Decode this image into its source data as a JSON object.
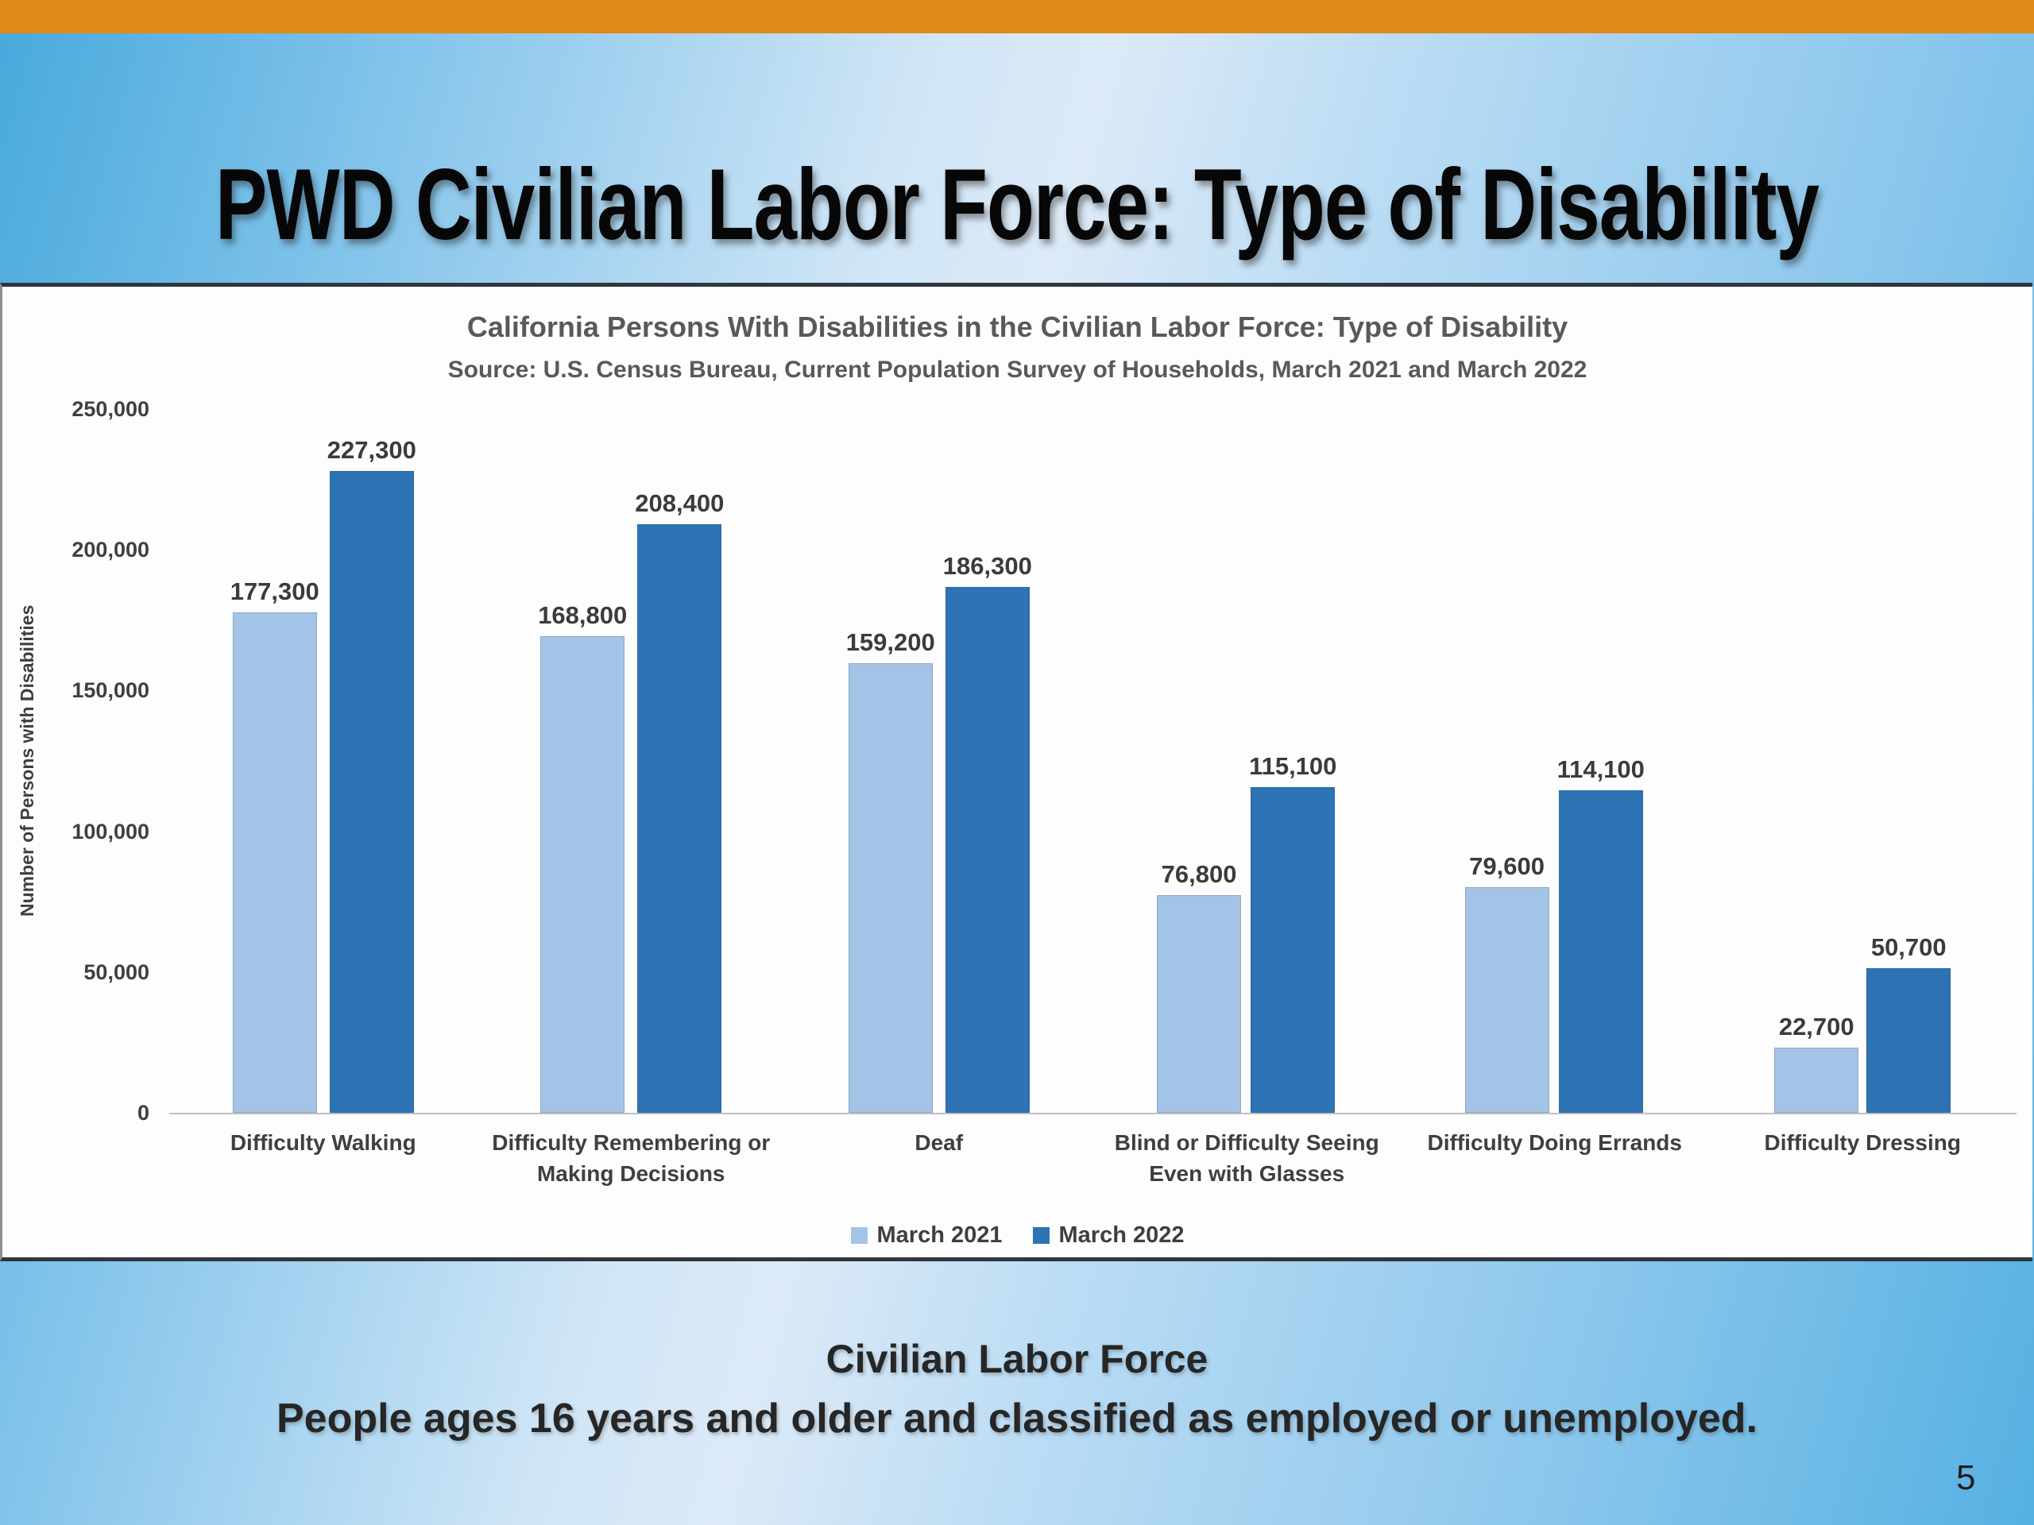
{
  "slide": {
    "title": "PWD Civilian Labor Force: Type of Disability",
    "page_number": "5",
    "footer": {
      "heading": "Civilian Labor Force",
      "subheading": "People ages 16 years and older and classified as employed or unemployed."
    }
  },
  "colors": {
    "top_bar_orange": "#E18A18",
    "background_blue": "#7FC2EA",
    "panel_border": "#30363E",
    "march_2021_light_blue": "#A3C4E6",
    "march_2022_dark_blue": "#2E73B4"
  },
  "chart_data": {
    "type": "bar",
    "title": "California Persons With Disabilities in the Civilian Labor Force: Type of Disability",
    "subtitle": "Source: U.S. Census Bureau, Current Population Survey of Households, March 2021 and March 2022",
    "ylabel": "Number of Persons with Disabilities",
    "xlabel": "",
    "ylim": [
      0,
      250000
    ],
    "grid": false,
    "legend_position": "bottom",
    "yticks": [
      {
        "label": "250,000",
        "value": 250000
      },
      {
        "label": "200,000",
        "value": 200000
      },
      {
        "label": "150,000",
        "value": 150000
      },
      {
        "label": "100,000",
        "value": 100000
      },
      {
        "label": "50,000",
        "value": 50000
      },
      {
        "label": "0",
        "value": 0
      }
    ],
    "categories": [
      "Difficulty Walking",
      "Difficulty Remembering or\nMaking Decisions",
      "Deaf",
      "Blind or Difficulty Seeing\nEven with Glasses",
      "Difficulty Doing Errands",
      "Difficulty Dressing"
    ],
    "series": [
      {
        "name": "March 2021",
        "color": "#A3C4E6",
        "values": [
          177300,
          168800,
          159200,
          76800,
          79600,
          22700
        ],
        "labels": [
          "177,300",
          "168,800",
          "159,200",
          "76,800",
          "79,600",
          "22,700"
        ]
      },
      {
        "name": "March 2022",
        "color": "#2E73B4",
        "values": [
          227300,
          208400,
          186300,
          115100,
          114100,
          50700
        ],
        "labels": [
          "227,300",
          "208,400",
          "186,300",
          "115,100",
          "114,100",
          "50,700"
        ]
      }
    ]
  }
}
